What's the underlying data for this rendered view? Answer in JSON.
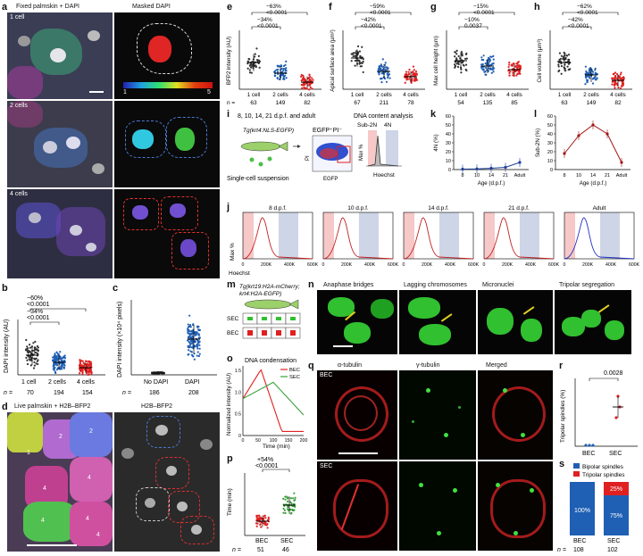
{
  "panel_labels": {
    "a": "a",
    "b": "b",
    "c": "c",
    "d": "d",
    "e": "e",
    "f": "f",
    "g": "g",
    "h": "h",
    "i": "i",
    "j": "j",
    "k": "k",
    "l": "l",
    "m": "m",
    "n": "n",
    "o": "o",
    "p": "p",
    "q": "q",
    "r": "r",
    "s": "s"
  },
  "panel_a": {
    "col_left": "Fixed palmskin + DAPI",
    "col_right": "Masked DAPI",
    "rows": [
      "1 cell",
      "2 cells",
      "4 cells"
    ],
    "colorbar_min": "1",
    "colorbar_max": "5"
  },
  "panel_b": {
    "ylabel": "DAPI intensity (AU)",
    "categories": [
      "1 cell",
      "2 cells",
      "4 cells"
    ],
    "n": [
      "70",
      "194",
      "154"
    ],
    "pct_top": "−60%",
    "p_top": "<0.0001",
    "pct_low": "−34%",
    "p_low": "<0.0001",
    "n_label": "n ="
  },
  "panel_c": {
    "ylabel": "DAPI intensity (×10⁴ pixels)",
    "categories": [
      "No DAPI",
      "DAPI"
    ],
    "n": [
      "186",
      "208"
    ],
    "n_label": "n ="
  },
  "panel_d": {
    "col_left": "Live palmskin + H2B–BFP2",
    "col_right": "H2B–BFP2",
    "cell_numbers": [
      "1",
      "2",
      "2",
      "4",
      "4",
      "4",
      "4",
      "4"
    ]
  },
  "panel_e": {
    "ylabel": "BFP2 intensity (AU)",
    "categories": [
      "1 cell",
      "2 cells",
      "4 cells"
    ],
    "n": [
      "63",
      "149",
      "82"
    ],
    "pct_top": "−63%",
    "p_top": "<0.0001",
    "pct_low": "−34%",
    "p_low": "<0.0001",
    "n_label": "n ="
  },
  "panel_f": {
    "ylabel": "Apical surface area (µm²)",
    "categories": [
      "1 cell",
      "2 cells",
      "4 cells"
    ],
    "n": [
      "67",
      "211",
      "78"
    ],
    "pct_top": "−59%",
    "p_top": "<0.0001",
    "pct_low": "−42%",
    "p_low": "<0.0001",
    "n_label": "n ="
  },
  "panel_g": {
    "ylabel": "Max cell height (µm)",
    "categories": [
      "1 cell",
      "2 cells",
      "4 cells"
    ],
    "n": [
      "54",
      "135",
      "85"
    ],
    "pct_top": "−15%",
    "p_top": "<0.0001",
    "pct_low": "−10%",
    "p_low": "0.0037",
    "n_label": "n ="
  },
  "panel_h": {
    "ylabel": "Cell volume (µm³)",
    "categories": [
      "1 cell",
      "2 cells",
      "4 cells"
    ],
    "n": [
      "63",
      "149",
      "82"
    ],
    "pct_top": "−62%",
    "p_top": "<0.0001",
    "pct_low": "−42%",
    "p_low": "<0.0001",
    "n_label": "n ="
  },
  "panel_i": {
    "ages": "8, 10, 14, 21 d.p.f. and adult",
    "line": "Tg(krt4:NLS-EGFP)",
    "suspension": "Single-cell suspension",
    "gate": "EGFP⁺PI⁻",
    "analysis": "DNA content analysis",
    "sub2n": "Sub-2N",
    "n4": "4N",
    "ylabel": "Max %",
    "xlabel": "Hoechst",
    "pi": "PI",
    "egfp": "EGFP"
  },
  "panel_j": {
    "titles": [
      "8 d.p.f.",
      "10 d.p.f.",
      "14 d.p.f.",
      "21 d.p.f.",
      "Adult"
    ],
    "ticks": [
      "0",
      "200K",
      "400K",
      "600K"
    ],
    "ylabel": "Max %",
    "xlabel": "Hoechst"
  },
  "panel_k": {
    "ylabel": "4N (%)",
    "xlabel": "Age (d.p.f.)",
    "xticks": [
      "8",
      "10",
      "14",
      "21",
      "Adult"
    ],
    "yticks": [
      "0",
      "10",
      "20",
      "30",
      "40",
      "50",
      "60"
    ]
  },
  "panel_l": {
    "ylabel": "Sub-2N (%)",
    "xlabel": "Age (d.p.f.)",
    "xticks": [
      "8",
      "10",
      "14",
      "21",
      "Adult"
    ],
    "yticks": [
      "0",
      "10",
      "20",
      "30",
      "40",
      "50",
      "60"
    ]
  },
  "panel_m": {
    "line": "Tg(krt19:H2A-mCherry;",
    "line2": "krt4:H2A-EGFP)",
    "sec": "SEC",
    "bec": "BEC"
  },
  "panel_n": {
    "titles": [
      "Anaphase bridges",
      "Lagging chromosomes",
      "Micronuclei",
      "Tripolar segregation"
    ]
  },
  "panel_o": {
    "title": "DNA condensation",
    "ylabel": "Normalized intensity (AU)",
    "xlabel": "Time (min)",
    "legend": [
      "BEC",
      "SEC"
    ],
    "xticks": [
      "0",
      "50",
      "100",
      "150",
      "200"
    ],
    "yticks": [
      "0",
      "0.5",
      "1.0",
      "1.5"
    ]
  },
  "panel_p": {
    "ylabel": "Time (min)",
    "pct": "+54%",
    "p": "<0.0001",
    "categories": [
      "BEC",
      "SEC"
    ],
    "n": [
      "51",
      "46"
    ],
    "n_label": "n ="
  },
  "panel_q": {
    "titles": [
      "α-tubulin",
      "γ-tubulin",
      "Merged"
    ],
    "rows": [
      "BEC",
      "SEC"
    ]
  },
  "panel_r": {
    "ylabel": "Tripolar spindles (%)",
    "p": "0.0028",
    "categories": [
      "BEC",
      "SEC"
    ]
  },
  "panel_s": {
    "legend": [
      "Bipolar spindles",
      "Tripolar spindles"
    ],
    "bec_bipolar": "100%",
    "sec_bipolar": "75%",
    "sec_tripolar": "25%",
    "categories": [
      "BEC",
      "SEC"
    ],
    "n": [
      "108",
      "102"
    ],
    "n_label": "n ="
  },
  "colors": {
    "blue": "#1f5fb4",
    "red": "#e02020",
    "green": "#3aa03a",
    "darkred": "#b01818"
  }
}
